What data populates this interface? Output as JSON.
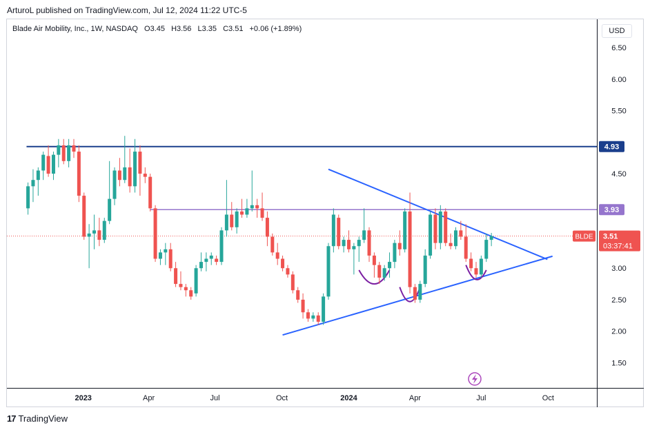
{
  "header": {
    "published": "ArturoL published on TradingView.com, Jul 12, 2024 11:22 UTC-5"
  },
  "legend": {
    "name": "Blade Air Mobility, Inc., 1W, NASDAQ",
    "open": "O3.45",
    "high": "H3.56",
    "low": "L3.35",
    "close": "C3.51",
    "change": "+0.06 (+1.89%)"
  },
  "currency": "USD",
  "footer": {
    "brand": "TradingView"
  },
  "colors": {
    "up": "#26a69a",
    "down": "#ef5350",
    "resistance": "#1a3e8c",
    "midline": "#9575cd",
    "triangle": "#2962ff",
    "arc": "#7b1fa2",
    "price": "#ef5350"
  },
  "chart_data": {
    "type": "candlestick",
    "timeframe": "1W",
    "symbol": "BLDE",
    "y_ticks": [
      "6.50",
      "6.00",
      "5.50",
      "4.50",
      "3.00",
      "2.50",
      "2.00",
      "1.50"
    ],
    "ylim": [
      1.1,
      6.95
    ],
    "x_ticks": [
      {
        "label": "2023",
        "date": "2023-01-01",
        "bold": true
      },
      {
        "label": "Apr",
        "date": "2023-04-01",
        "bold": false
      },
      {
        "label": "Jul",
        "date": "2023-07-01",
        "bold": false
      },
      {
        "label": "Oct",
        "date": "2023-10-01",
        "bold": false
      },
      {
        "label": "2024",
        "date": "2024-01-01",
        "bold": true
      },
      {
        "label": "Apr",
        "date": "2024-04-01",
        "bold": false
      },
      {
        "label": "Jul",
        "date": "2024-07-01",
        "bold": false
      },
      {
        "label": "Oct",
        "date": "2024-10-01",
        "bold": false
      }
    ],
    "price_labels": [
      {
        "name": "resistance",
        "value": "4.93",
        "price": 4.93
      },
      {
        "name": "midline",
        "value": "3.93",
        "price": 3.93
      }
    ],
    "last_price": {
      "symbol": "BLDE",
      "value": "3.51",
      "countdown": "03:37:41",
      "price": 3.51
    },
    "horizontal_lines": [
      {
        "name": "resistance",
        "price": 4.93,
        "from": "2022-10-15"
      },
      {
        "name": "midline",
        "price": 3.93,
        "from": "2023-04-03"
      }
    ],
    "trendlines": [
      {
        "name": "upper",
        "from": [
          "2023-12-04",
          4.57
        ],
        "to": [
          "2024-09-30",
          3.14
        ]
      },
      {
        "name": "lower",
        "from": [
          "2023-10-02",
          1.94
        ],
        "to": [
          "2024-10-07",
          3.19
        ]
      }
    ],
    "arcs": [
      {
        "from": [
          "2024-01-15",
          2.97
        ],
        "low": [
          "2024-02-05",
          2.75
        ],
        "to": [
          "2024-02-26",
          2.97
        ]
      },
      {
        "from": [
          "2024-03-11",
          2.7
        ],
        "low": [
          "2024-03-25",
          2.47
        ],
        "to": [
          "2024-04-08",
          2.7
        ]
      },
      {
        "from": [
          "2024-06-10",
          3.05
        ],
        "low": [
          "2024-06-24",
          2.82
        ],
        "to": [
          "2024-07-08",
          2.97
        ]
      }
    ],
    "candles": [
      [
        "2022-10-17",
        3.95,
        4.36,
        3.85,
        4.3
      ],
      [
        "2022-10-24",
        4.3,
        4.57,
        4.05,
        4.4
      ],
      [
        "2022-10-31",
        4.4,
        4.6,
        4.15,
        4.55
      ],
      [
        "2022-11-07",
        4.55,
        4.85,
        4.4,
        4.8
      ],
      [
        "2022-11-14",
        4.78,
        4.95,
        4.45,
        4.5
      ],
      [
        "2022-11-21",
        4.5,
        4.85,
        4.4,
        4.8
      ],
      [
        "2022-11-28",
        4.8,
        5.05,
        4.6,
        4.95
      ],
      [
        "2022-12-05",
        4.95,
        5.05,
        4.65,
        4.7
      ],
      [
        "2022-12-12",
        4.7,
        5.05,
        4.6,
        4.95
      ],
      [
        "2022-12-19",
        4.95,
        5.05,
        4.75,
        4.85
      ],
      [
        "2022-12-26",
        4.85,
        4.95,
        4.05,
        4.15
      ],
      [
        "2023-01-02",
        4.15,
        4.2,
        3.45,
        3.5
      ],
      [
        "2023-01-09",
        3.5,
        3.7,
        3.0,
        3.55
      ],
      [
        "2023-01-16",
        3.55,
        3.85,
        3.3,
        3.6
      ],
      [
        "2023-01-23",
        3.6,
        3.8,
        3.35,
        3.45
      ],
      [
        "2023-01-30",
        3.45,
        3.8,
        3.4,
        3.75
      ],
      [
        "2023-02-06",
        3.75,
        4.7,
        3.7,
        4.1
      ],
      [
        "2023-02-13",
        4.1,
        4.6,
        4.0,
        4.55
      ],
      [
        "2023-02-20",
        4.55,
        4.75,
        4.3,
        4.4
      ],
      [
        "2023-02-27",
        4.4,
        5.1,
        4.35,
        4.6
      ],
      [
        "2023-03-06",
        4.6,
        4.9,
        4.2,
        4.3
      ],
      [
        "2023-03-13",
        4.3,
        5.05,
        4.2,
        4.85
      ],
      [
        "2023-03-20",
        4.85,
        4.95,
        4.15,
        4.5
      ],
      [
        "2023-03-27",
        4.5,
        4.6,
        4.35,
        4.45
      ],
      [
        "2023-04-03",
        4.45,
        4.5,
        3.9,
        3.95
      ],
      [
        "2023-04-10",
        3.95,
        4.0,
        3.1,
        3.15
      ],
      [
        "2023-04-17",
        3.15,
        3.3,
        3.05,
        3.25
      ],
      [
        "2023-04-24",
        3.25,
        3.4,
        3.05,
        3.3
      ],
      [
        "2023-05-01",
        3.3,
        3.4,
        2.95,
        3.0
      ],
      [
        "2023-05-08",
        3.0,
        3.1,
        2.7,
        2.75
      ],
      [
        "2023-05-15",
        2.75,
        2.95,
        2.65,
        2.7
      ],
      [
        "2023-05-22",
        2.7,
        2.75,
        2.55,
        2.65
      ],
      [
        "2023-05-29",
        2.65,
        2.7,
        2.5,
        2.55
      ],
      [
        "2023-06-05",
        2.6,
        3.05,
        2.55,
        3.0
      ],
      [
        "2023-06-12",
        3.0,
        3.25,
        2.95,
        3.1
      ],
      [
        "2023-06-19",
        3.1,
        3.25,
        2.95,
        3.15
      ],
      [
        "2023-06-26",
        3.15,
        3.25,
        3.05,
        3.2
      ],
      [
        "2023-07-03",
        3.15,
        3.2,
        3.05,
        3.1
      ],
      [
        "2023-07-10",
        3.1,
        3.65,
        3.05,
        3.6
      ],
      [
        "2023-07-17",
        3.6,
        4.4,
        3.5,
        3.85
      ],
      [
        "2023-07-24",
        3.85,
        4.05,
        3.6,
        3.65
      ],
      [
        "2023-07-31",
        3.65,
        3.95,
        3.55,
        3.9
      ],
      [
        "2023-08-07",
        3.9,
        4.1,
        3.8,
        3.85
      ],
      [
        "2023-08-14",
        3.85,
        4.1,
        3.8,
        3.95
      ],
      [
        "2023-08-21",
        3.95,
        4.55,
        3.9,
        4.0
      ],
      [
        "2023-08-28",
        4.0,
        4.1,
        3.8,
        3.95
      ],
      [
        "2023-09-04",
        3.95,
        4.2,
        3.75,
        3.8
      ],
      [
        "2023-09-11",
        3.8,
        3.9,
        3.35,
        3.5
      ],
      [
        "2023-09-18",
        3.5,
        3.55,
        3.2,
        3.25
      ],
      [
        "2023-09-25",
        3.25,
        3.4,
        3.05,
        3.15
      ],
      [
        "2023-10-02",
        3.15,
        3.2,
        2.95,
        3.0
      ],
      [
        "2023-10-09",
        3.0,
        3.05,
        2.85,
        2.9
      ],
      [
        "2023-10-16",
        2.9,
        2.95,
        2.6,
        2.65
      ],
      [
        "2023-10-23",
        2.65,
        2.7,
        2.45,
        2.5
      ],
      [
        "2023-10-30",
        2.5,
        2.6,
        2.2,
        2.3
      ],
      [
        "2023-11-06",
        2.3,
        2.35,
        2.15,
        2.2
      ],
      [
        "2023-11-13",
        2.2,
        2.3,
        2.15,
        2.25
      ],
      [
        "2023-11-20",
        2.25,
        2.3,
        2.1,
        2.15
      ],
      [
        "2023-11-27",
        2.15,
        2.6,
        2.1,
        2.55
      ],
      [
        "2023-12-04",
        2.55,
        3.4,
        2.5,
        3.35
      ],
      [
        "2023-12-11",
        3.35,
        3.95,
        3.25,
        3.85
      ],
      [
        "2023-12-18",
        3.8,
        3.85,
        3.3,
        3.35
      ],
      [
        "2023-12-25",
        3.35,
        3.5,
        3.25,
        3.45
      ],
      [
        "2024-01-01",
        3.45,
        3.6,
        3.25,
        3.3
      ],
      [
        "2024-01-08",
        3.3,
        3.4,
        2.9,
        3.35
      ],
      [
        "2024-01-15",
        3.35,
        3.5,
        3.1,
        3.45
      ],
      [
        "2024-01-22",
        3.45,
        3.95,
        3.4,
        3.6
      ],
      [
        "2024-01-29",
        3.6,
        3.65,
        3.1,
        3.2
      ],
      [
        "2024-02-05",
        3.2,
        3.25,
        2.85,
        3.05
      ],
      [
        "2024-02-12",
        3.05,
        3.1,
        2.75,
        2.85
      ],
      [
        "2024-02-19",
        2.85,
        3.05,
        2.8,
        3.0
      ],
      [
        "2024-02-26",
        3.0,
        3.25,
        2.85,
        3.1
      ],
      [
        "2024-03-04",
        3.1,
        3.45,
        3.0,
        3.4
      ],
      [
        "2024-03-11",
        3.4,
        3.6,
        3.2,
        3.3
      ],
      [
        "2024-03-18",
        3.3,
        3.95,
        3.25,
        3.9
      ],
      [
        "2024-03-25",
        3.9,
        4.2,
        2.6,
        2.7
      ],
      [
        "2024-04-01",
        2.7,
        2.75,
        2.45,
        2.5
      ],
      [
        "2024-04-08",
        2.5,
        2.8,
        2.45,
        2.75
      ],
      [
        "2024-04-15",
        2.75,
        3.3,
        2.7,
        3.2
      ],
      [
        "2024-04-22",
        3.2,
        3.9,
        3.15,
        3.85
      ],
      [
        "2024-04-29",
        3.85,
        3.95,
        3.3,
        3.4
      ],
      [
        "2024-05-06",
        3.4,
        4.0,
        3.3,
        3.9
      ],
      [
        "2024-05-13",
        3.9,
        3.95,
        3.35,
        3.4
      ],
      [
        "2024-05-20",
        3.4,
        3.55,
        3.3,
        3.35
      ],
      [
        "2024-05-27",
        3.35,
        3.65,
        3.3,
        3.6
      ],
      [
        "2024-06-03",
        3.6,
        3.75,
        3.45,
        3.5
      ],
      [
        "2024-06-10",
        3.5,
        3.7,
        3.1,
        3.15
      ],
      [
        "2024-06-17",
        3.15,
        3.25,
        2.95,
        3.0
      ],
      [
        "2024-06-24",
        3.0,
        3.1,
        2.85,
        2.9
      ],
      [
        "2024-07-01",
        2.9,
        3.2,
        2.85,
        3.15
      ],
      [
        "2024-07-08",
        3.15,
        3.55,
        3.1,
        3.45
      ],
      [
        "2024-07-15",
        3.45,
        3.56,
        3.35,
        3.51
      ]
    ]
  }
}
